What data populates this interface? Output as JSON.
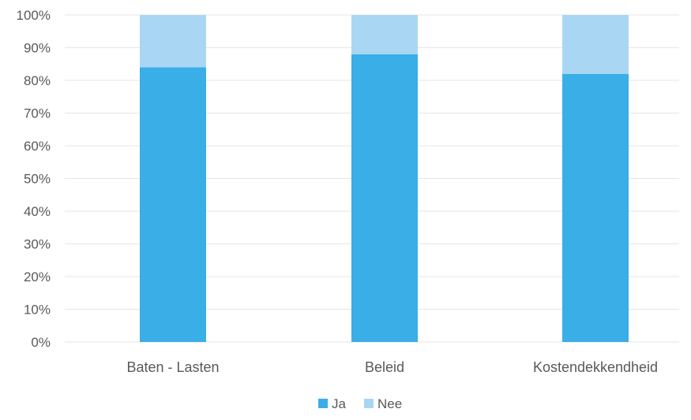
{
  "chart_data": {
    "type": "bar",
    "stacked": true,
    "categories": [
      "Baten - Lasten",
      "Beleid",
      "Kostendekkendheid"
    ],
    "series": [
      {
        "name": "Ja",
        "values": [
          84,
          88,
          82
        ],
        "color": "#3aaee6"
      },
      {
        "name": "Nee",
        "values": [
          16,
          12,
          18
        ],
        "color": "#a9d7f3"
      }
    ],
    "y_ticks": [
      "0%",
      "10%",
      "20%",
      "30%",
      "40%",
      "50%",
      "60%",
      "70%",
      "80%",
      "90%",
      "100%"
    ],
    "ylim": [
      0,
      100
    ],
    "grid": true,
    "legend_position": "bottom",
    "title": "",
    "xlabel": "",
    "ylabel": ""
  },
  "colors": {
    "gridline": "#e6e6e6",
    "axis_text": "#595959"
  }
}
